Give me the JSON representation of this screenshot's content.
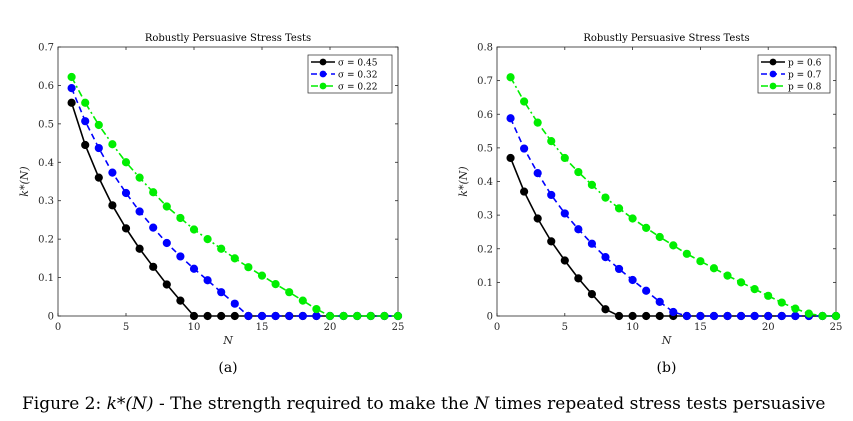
{
  "caption": {
    "prefix": "Figure 2: ",
    "math": "k*(N)",
    "middle": " - The strength required to make the ",
    "math2": "N",
    "suffix": " times repeated stress tests persuasive"
  },
  "chart_data": [
    {
      "type": "line",
      "panel_label": "(a)",
      "title": "Robustly Persuasive Stress Tests",
      "xlabel": "N",
      "ylabel": "k*(N)",
      "xlim": [
        0,
        25
      ],
      "ylim": [
        0,
        0.7
      ],
      "xticks": [
        0,
        5,
        10,
        15,
        20,
        25
      ],
      "yticks": [
        0,
        0.1,
        0.2,
        0.3,
        0.4,
        0.5,
        0.6,
        0.7
      ],
      "legend_position": "top-right",
      "grid": false,
      "x": [
        1,
        2,
        3,
        4,
        5,
        6,
        7,
        8,
        9,
        10,
        11,
        12,
        13,
        14,
        15,
        16,
        17,
        18,
        19,
        20,
        21,
        22,
        23,
        24,
        25
      ],
      "series": [
        {
          "name": "σ = 0.45",
          "color": "#000000",
          "dash": "solid",
          "values": [
            0.555,
            0.445,
            0.36,
            0.288,
            0.228,
            0.175,
            0.128,
            0.082,
            0.04,
            0,
            0,
            0,
            0,
            0,
            0,
            0,
            0,
            0,
            0,
            0,
            0,
            0,
            0,
            0,
            0
          ]
        },
        {
          "name": "σ = 0.32",
          "color": "#0000ff",
          "dash": "dashed",
          "values": [
            0.593,
            0.507,
            0.437,
            0.373,
            0.32,
            0.272,
            0.23,
            0.19,
            0.155,
            0.123,
            0.093,
            0.062,
            0.032,
            0,
            0,
            0,
            0,
            0,
            0,
            0,
            0,
            0,
            0,
            0,
            0
          ]
        },
        {
          "name": "σ = 0.22",
          "color": "#00ee00",
          "dash": "dashdot",
          "values": [
            0.622,
            0.555,
            0.497,
            0.447,
            0.4,
            0.36,
            0.322,
            0.285,
            0.255,
            0.225,
            0.2,
            0.175,
            0.15,
            0.127,
            0.105,
            0.083,
            0.062,
            0.04,
            0.018,
            0,
            0,
            0,
            0,
            0,
            0
          ]
        }
      ]
    },
    {
      "type": "line",
      "panel_label": "(b)",
      "title": "Robustly Persuasive Stress Tests",
      "xlabel": "N",
      "ylabel": "k*(N)",
      "xlim": [
        0,
        25
      ],
      "ylim": [
        0,
        0.8
      ],
      "xticks": [
        0,
        5,
        10,
        15,
        20,
        25
      ],
      "yticks": [
        0,
        0.1,
        0.2,
        0.3,
        0.4,
        0.5,
        0.6,
        0.7,
        0.8
      ],
      "legend_position": "top-right",
      "grid": false,
      "x": [
        1,
        2,
        3,
        4,
        5,
        6,
        7,
        8,
        9,
        10,
        11,
        12,
        13,
        14,
        15,
        16,
        17,
        18,
        19,
        20,
        21,
        22,
        23,
        24,
        25
      ],
      "series": [
        {
          "name": "p = 0.6",
          "color": "#000000",
          "dash": "solid",
          "values": [
            0.47,
            0.37,
            0.29,
            0.222,
            0.165,
            0.112,
            0.065,
            0.02,
            0,
            0,
            0,
            0,
            0,
            0,
            0,
            0,
            0,
            0,
            0,
            0,
            0,
            0,
            0,
            0,
            0
          ]
        },
        {
          "name": "p = 0.7",
          "color": "#0000ff",
          "dash": "dashed",
          "values": [
            0.588,
            0.498,
            0.425,
            0.36,
            0.305,
            0.258,
            0.215,
            0.175,
            0.14,
            0.107,
            0.075,
            0.042,
            0.012,
            0,
            0,
            0,
            0,
            0,
            0,
            0,
            0,
            0,
            0,
            0,
            0
          ]
        },
        {
          "name": "p = 0.8",
          "color": "#00ee00",
          "dash": "dashdot",
          "values": [
            0.71,
            0.638,
            0.575,
            0.52,
            0.47,
            0.428,
            0.39,
            0.352,
            0.32,
            0.29,
            0.262,
            0.235,
            0.21,
            0.185,
            0.163,
            0.142,
            0.12,
            0.1,
            0.08,
            0.06,
            0.04,
            0.022,
            0.007,
            0,
            0
          ]
        }
      ]
    }
  ]
}
